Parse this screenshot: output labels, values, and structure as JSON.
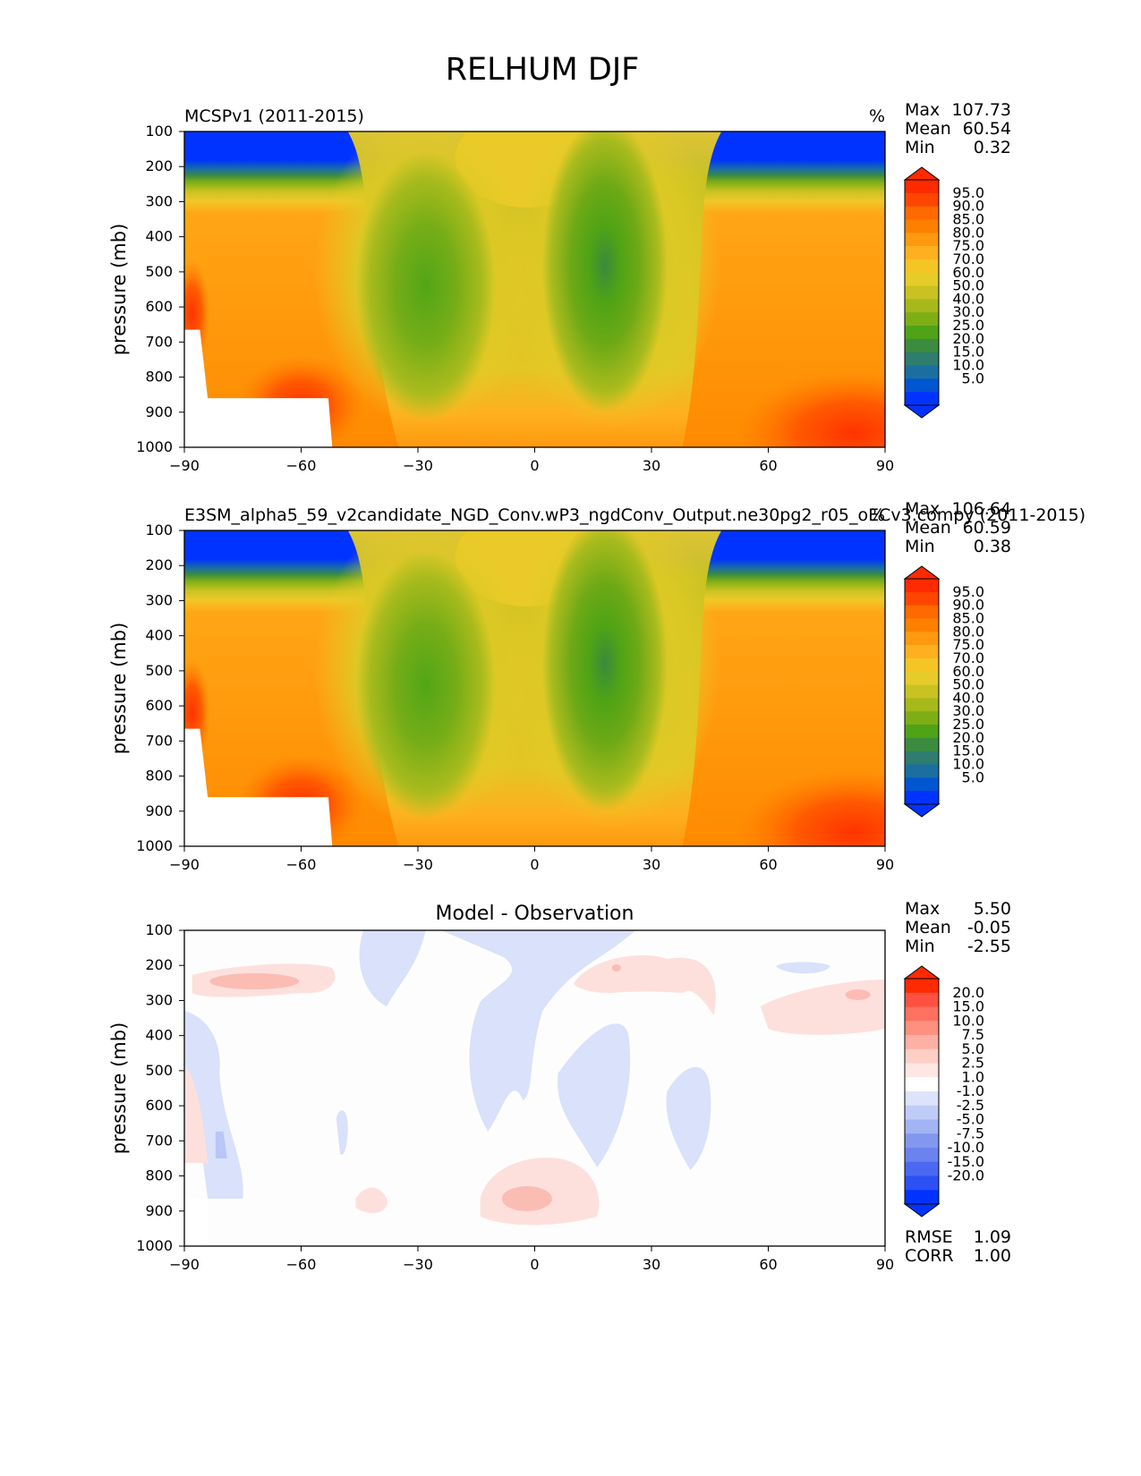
{
  "figure": {
    "title": "RELHUM DJF",
    "ylabel": "pressure (mb)",
    "xticks": [
      "−90",
      "−60",
      "−30",
      "0",
      "30",
      "60",
      "90"
    ],
    "yticks": [
      "100",
      "200",
      "300",
      "400",
      "500",
      "600",
      "700",
      "800",
      "900",
      "1000"
    ]
  },
  "panels": [
    {
      "id": "panel-obs",
      "left_title": "MCSPv1 (2011-2015)",
      "center_title": "",
      "units": "%",
      "stats": [
        {
          "label": "Max",
          "value": "107.73"
        },
        {
          "label": "Mean",
          "value": "60.54"
        },
        {
          "label": "Min",
          "value": "0.32"
        }
      ],
      "colorbar_labels": [
        "95.0",
        "90.0",
        "85.0",
        "80.0",
        "75.0",
        "70.0",
        "60.0",
        "50.0",
        "40.0",
        "30.0",
        "25.0",
        "20.0",
        "15.0",
        "10.0",
        "5.0"
      ],
      "colorbar_colors": [
        "#ff2a00",
        "#ff4500",
        "#ff6a00",
        "#ff8000",
        "#ff9a10",
        "#ffb020",
        "#f5c525",
        "#e6cc28",
        "#c8c222",
        "#a6b81a",
        "#7eae16",
        "#4ea416",
        "#3c8c40",
        "#2e7d6e",
        "#1a6fa0",
        "#0055d0",
        "#0033ff"
      ],
      "extend_top_color": "#ff2a00",
      "extend_bottom_color": "#0033ff"
    },
    {
      "id": "panel-model",
      "left_title": "E3SM_alpha5_59_v2candidate_NGD_Conv.wP3_ngdConv_Output.ne30pg2_r05_oECv3.compy (2011-2015)",
      "center_title": "",
      "units": "%",
      "stats": [
        {
          "label": "Max",
          "value": "106.64"
        },
        {
          "label": "Mean",
          "value": "60.59"
        },
        {
          "label": "Min",
          "value": "0.38"
        }
      ],
      "colorbar_labels": [
        "95.0",
        "90.0",
        "85.0",
        "80.0",
        "75.0",
        "70.0",
        "60.0",
        "50.0",
        "40.0",
        "30.0",
        "25.0",
        "20.0",
        "15.0",
        "10.0",
        "5.0"
      ],
      "colorbar_colors": [
        "#ff2a00",
        "#ff4500",
        "#ff6a00",
        "#ff8000",
        "#ff9a10",
        "#ffb020",
        "#f5c525",
        "#e6cc28",
        "#c8c222",
        "#a6b81a",
        "#7eae16",
        "#4ea416",
        "#3c8c40",
        "#2e7d6e",
        "#1a6fa0",
        "#0055d0",
        "#0033ff"
      ],
      "extend_top_color": "#ff2a00",
      "extend_bottom_color": "#0033ff"
    },
    {
      "id": "panel-diff",
      "left_title": "",
      "center_title": "Model - Observation",
      "units": "",
      "stats": [
        {
          "label": "Max",
          "value": "5.50"
        },
        {
          "label": "Mean",
          "value": "-0.05"
        },
        {
          "label": "Min",
          "value": "-2.55"
        }
      ],
      "colorbar_labels": [
        "20.0",
        "15.0",
        "10.0",
        "7.5",
        "5.0",
        "2.5",
        "1.0",
        "-1.0",
        "-2.5",
        "-5.0",
        "-7.5",
        "-10.0",
        "-15.0",
        "-20.0"
      ],
      "colorbar_colors": [
        "#ff2a00",
        "#ff5040",
        "#ff7060",
        "#ff9080",
        "#ffb0a4",
        "#ffcfc6",
        "#ffe6e2",
        "#ffffff",
        "#dde3fb",
        "#c0ccf8",
        "#a2b4f4",
        "#8298ef",
        "#6a83ef",
        "#4a68f2",
        "#2d50f5",
        "#0033ff"
      ],
      "extend_top_color": "#ff2a00",
      "extend_bottom_color": "#0033ff",
      "metrics": [
        {
          "label": "RMSE",
          "value": "1.09"
        },
        {
          "label": "CORR",
          "value": "1.00"
        }
      ]
    }
  ],
  "chart_data": [
    {
      "type": "heatmap",
      "title": "MCSPv1 (2011-2015)",
      "xlabel": "",
      "ylabel": "pressure (mb)",
      "xlim": [
        -90,
        90
      ],
      "ylim": [
        1000,
        100
      ],
      "units": "%",
      "x": [
        -90,
        -75,
        -60,
        -45,
        -30,
        -15,
        0,
        15,
        30,
        45,
        60,
        75,
        90
      ],
      "y": [
        100,
        200,
        300,
        400,
        500,
        600,
        700,
        800,
        900,
        1000
      ],
      "z": [
        [
          2,
          2,
          2,
          4,
          15,
          60,
          70,
          55,
          12,
          3,
          2,
          2,
          2
        ],
        [
          5,
          5,
          8,
          30,
          55,
          65,
          68,
          50,
          48,
          25,
          8,
          5,
          5
        ],
        [
          75,
          75,
          70,
          65,
          50,
          45,
          55,
          40,
          60,
          70,
          72,
          70,
          72
        ],
        [
          80,
          78,
          75,
          65,
          38,
          40,
          50,
          30,
          60,
          78,
          80,
          80,
          82
        ],
        [
          82,
          80,
          78,
          55,
          32,
          40,
          62,
          25,
          55,
          80,
          82,
          85,
          86
        ],
        [
          86,
          82,
          80,
          60,
          35,
          42,
          65,
          30,
          58,
          82,
          85,
          86,
          88
        ],
        [
          88,
          82,
          82,
          65,
          45,
          48,
          68,
          38,
          65,
          82,
          86,
          88,
          90
        ],
        [
          88,
          85,
          88,
          75,
          55,
          58,
          65,
          52,
          72,
          85,
          88,
          90,
          93
        ],
        [
          null,
          88,
          92,
          80,
          75,
          70,
          72,
          70,
          78,
          86,
          90,
          93,
          96
        ],
        [
          null,
          null,
          90,
          82,
          78,
          75,
          80,
          78,
          80,
          88,
          92,
          96,
          100
        ]
      ]
    },
    {
      "type": "heatmap",
      "title": "E3SM_alpha5_59_v2candidate_NGD_Conv.wP3_ngdConv_Output.ne30pg2_r05_oECv3.compy (2011-2015)",
      "xlabel": "",
      "ylabel": "pressure (mb)",
      "xlim": [
        -90,
        90
      ],
      "ylim": [
        1000,
        100
      ],
      "units": "%",
      "x": [
        -90,
        -75,
        -60,
        -45,
        -30,
        -15,
        0,
        15,
        30,
        45,
        60,
        75,
        90
      ],
      "y": [
        100,
        200,
        300,
        400,
        500,
        600,
        700,
        800,
        900,
        1000
      ],
      "z": [
        [
          2,
          2,
          2,
          4,
          15,
          60,
          70,
          55,
          12,
          3,
          2,
          2,
          2
        ],
        [
          5,
          5,
          8,
          30,
          55,
          66,
          68,
          52,
          48,
          25,
          8,
          5,
          5
        ],
        [
          75,
          75,
          70,
          65,
          50,
          46,
          55,
          42,
          62,
          70,
          72,
          70,
          72
        ],
        [
          80,
          78,
          75,
          65,
          38,
          40,
          48,
          32,
          60,
          78,
          80,
          80,
          82
        ],
        [
          82,
          80,
          78,
          55,
          32,
          40,
          60,
          28,
          55,
          80,
          82,
          85,
          86
        ],
        [
          86,
          82,
          80,
          60,
          35,
          42,
          65,
          32,
          58,
          82,
          85,
          86,
          88
        ],
        [
          88,
          82,
          82,
          65,
          45,
          48,
          68,
          40,
          65,
          82,
          86,
          88,
          90
        ],
        [
          88,
          85,
          88,
          75,
          55,
          58,
          65,
          52,
          72,
          85,
          88,
          90,
          93
        ],
        [
          null,
          88,
          92,
          80,
          75,
          72,
          74,
          70,
          78,
          86,
          90,
          93,
          96
        ],
        [
          null,
          null,
          90,
          82,
          78,
          77,
          80,
          78,
          80,
          88,
          92,
          96,
          100
        ]
      ]
    },
    {
      "type": "heatmap",
      "title": "Model - Observation",
      "xlabel": "",
      "ylabel": "pressure (mb)",
      "xlim": [
        -90,
        90
      ],
      "ylim": [
        1000,
        100
      ],
      "x": [
        -90,
        -75,
        -60,
        -45,
        -30,
        -15,
        0,
        15,
        30,
        45,
        60,
        75,
        90
      ],
      "y": [
        100,
        200,
        300,
        400,
        500,
        600,
        700,
        800,
        900,
        1000
      ],
      "z": [
        [
          0,
          0,
          0,
          0,
          0,
          -1.2,
          -1.2,
          -1.2,
          0,
          0,
          0,
          0,
          0
        ],
        [
          0,
          2.8,
          2.8,
          0,
          -1.2,
          0,
          -1.2,
          0,
          2.0,
          1.5,
          0,
          -1.2,
          0
        ],
        [
          0,
          2.5,
          1.5,
          0,
          -1.2,
          0,
          -1.5,
          0,
          1.5,
          1.5,
          0,
          2.0,
          3.0
        ],
        [
          -1.2,
          0,
          0,
          0,
          0,
          -1.5,
          -1.5,
          0,
          -1.2,
          0,
          0,
          1.5,
          1.5
        ],
        [
          0,
          -1.2,
          0,
          0,
          0,
          -1.2,
          0,
          -1.5,
          -1.2,
          -1.2,
          0,
          0,
          -1.2
        ],
        [
          2.0,
          -1.2,
          0,
          -1.2,
          0,
          -1.2,
          0,
          -1.5,
          0,
          -1.2,
          0,
          0,
          0
        ],
        [
          1.5,
          -1.5,
          0,
          -1.2,
          0,
          0,
          0,
          -1.2,
          0,
          -1.2,
          0,
          0,
          0
        ],
        [
          0,
          -1.2,
          0,
          0,
          0,
          0,
          1.5,
          -1.2,
          0,
          0,
          0,
          0,
          0
        ],
        [
          null,
          0,
          0,
          0,
          1.5,
          1.5,
          2.8,
          1.5,
          0,
          0,
          0,
          0,
          0
        ],
        [
          null,
          null,
          0,
          0,
          0,
          0,
          0,
          0,
          0,
          0,
          0,
          0,
          0
        ]
      ]
    }
  ]
}
